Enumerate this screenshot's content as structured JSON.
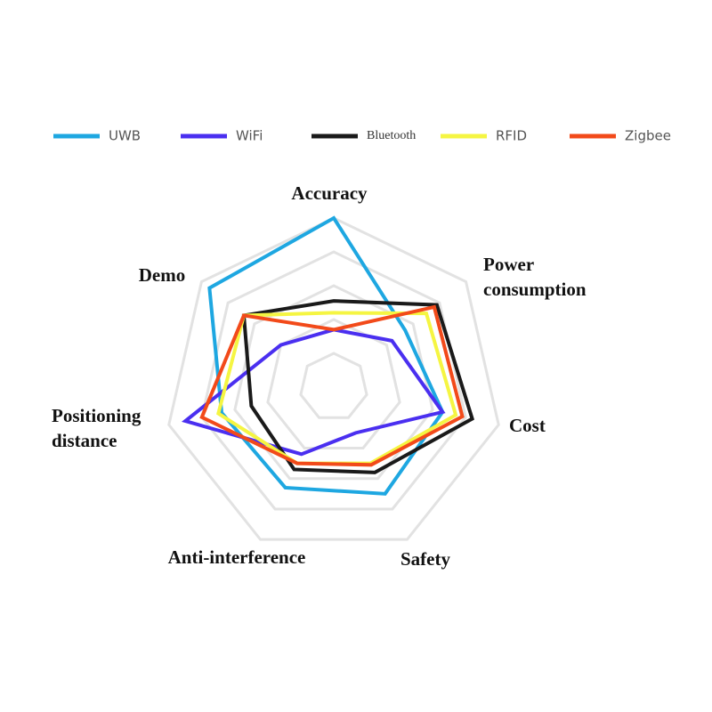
{
  "chart_data": {
    "type": "radar",
    "categories": [
      "Accuracy",
      "Power consumption",
      "Cost",
      "Safety",
      "Anti-interference",
      "Positioning distance",
      "Demo"
    ],
    "ylim": [
      0,
      5
    ],
    "yticks": [
      1,
      2,
      3,
      4,
      5
    ],
    "grid": true,
    "series": [
      {
        "name": "UWB",
        "color": "#1ea7e1",
        "values": [
          5,
          2.7,
          3.3,
          3.5,
          3.3,
          3.4,
          4.7
        ]
      },
      {
        "name": "WiFi",
        "color": "#4a2ff0",
        "values": [
          1.7,
          2.2,
          3.3,
          1.5,
          2.2,
          4.5,
          2.0
        ]
      },
      {
        "name": "Bluetooth",
        "color": "#1a1a1a",
        "values": [
          2.55,
          3.9,
          4.2,
          2.8,
          2.7,
          2.5,
          3.4
        ]
      },
      {
        "name": "RFID",
        "color": "#f5f542",
        "values": [
          2.2,
          3.5,
          3.7,
          2.5,
          2.5,
          3.5,
          3.4
        ]
      },
      {
        "name": "Zigbee",
        "color": "#f24a1a",
        "values": [
          1.7,
          3.8,
          3.9,
          2.55,
          2.5,
          4.0,
          3.4
        ]
      }
    ]
  }
}
